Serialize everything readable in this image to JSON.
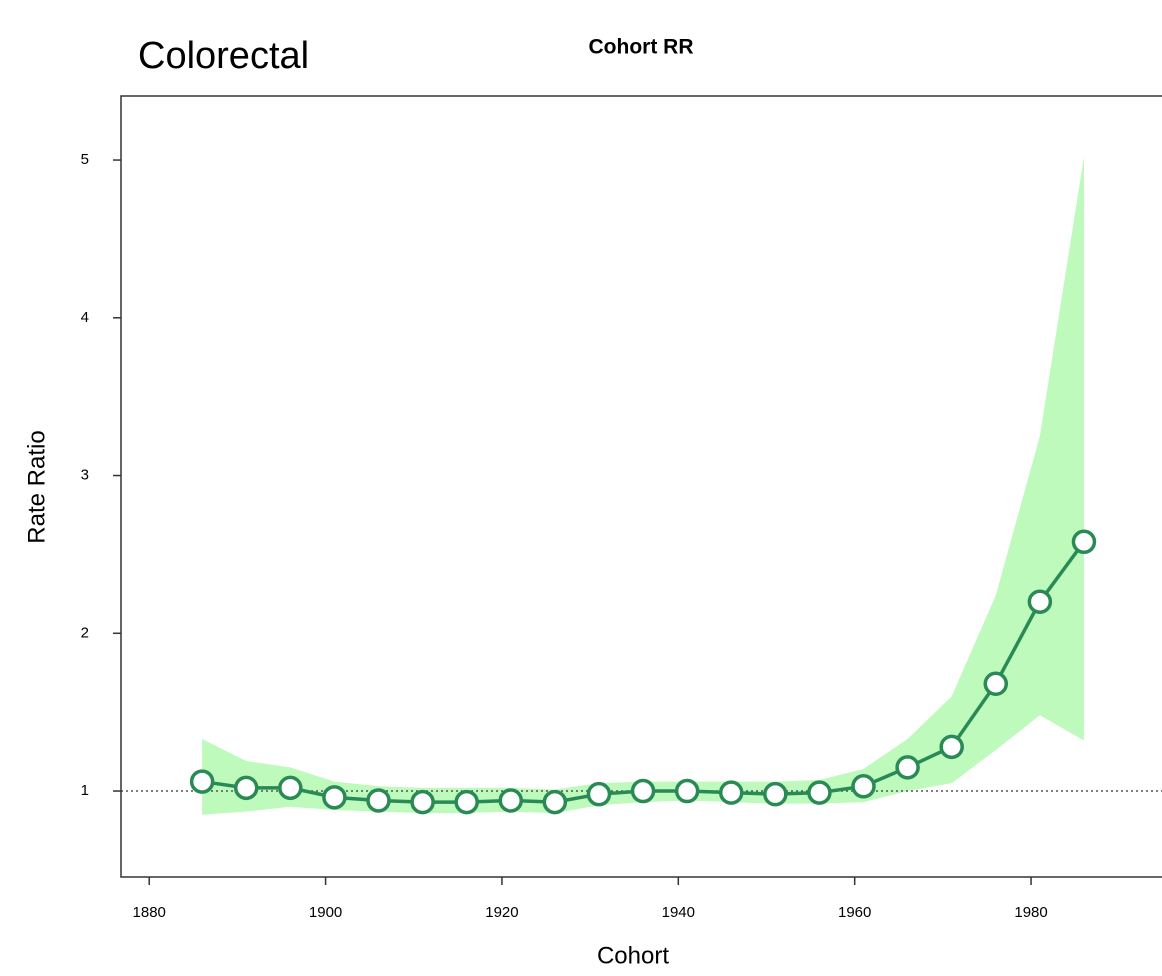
{
  "chart_data": {
    "type": "line",
    "heading": "Colorectal",
    "title": "Cohort RR",
    "x_label": "Cohort",
    "y_label": "Rate Ratio",
    "x": [
      1886,
      1891,
      1896,
      1901,
      1906,
      1911,
      1916,
      1921,
      1926,
      1931,
      1936,
      1941,
      1946,
      1951,
      1956,
      1961,
      1966,
      1971,
      1976,
      1981,
      1986
    ],
    "series": [
      {
        "color": "#2a8a55",
        "band_color": "#bdfabb",
        "values": [
          1.06,
          1.02,
          1.02,
          0.96,
          0.94,
          0.93,
          0.93,
          0.94,
          0.93,
          0.98,
          1.0,
          1.0,
          0.99,
          0.98,
          0.99,
          1.03,
          1.15,
          1.28,
          1.68,
          2.2,
          2.58
        ],
        "lower": [
          0.85,
          0.87,
          0.9,
          0.88,
          0.87,
          0.86,
          0.86,
          0.87,
          0.86,
          0.91,
          0.93,
          0.94,
          0.93,
          0.92,
          0.92,
          0.93,
          1.0,
          1.05,
          1.26,
          1.48,
          1.32
        ],
        "upper": [
          1.33,
          1.19,
          1.15,
          1.06,
          1.03,
          1.02,
          1.02,
          1.02,
          1.01,
          1.05,
          1.06,
          1.06,
          1.06,
          1.06,
          1.07,
          1.14,
          1.33,
          1.6,
          2.24,
          3.25,
          5.02
        ]
      }
    ],
    "reference_line": 1,
    "xlim": [
      1876.8,
      1994.85
    ],
    "ylim": [
      0.455,
      5.406
    ],
    "xticks": [
      1880,
      1900,
      1920,
      1940,
      1960,
      1980
    ],
    "yticks": [
      1,
      2,
      3,
      4,
      5
    ]
  }
}
